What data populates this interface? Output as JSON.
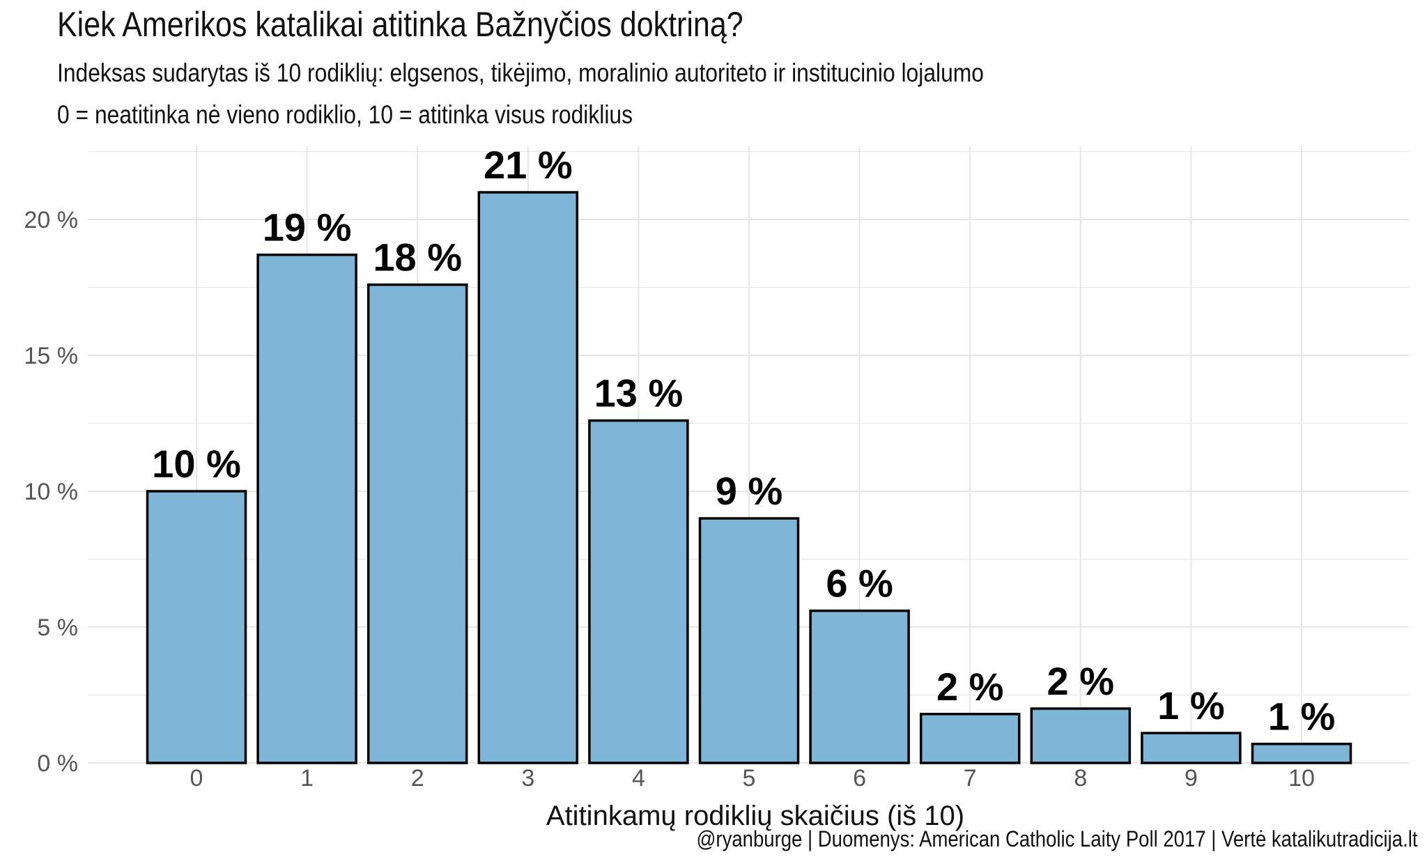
{
  "header": {
    "title": "Kiek Amerikos katalikai atitinka Bažnyčios doktriną?",
    "subtitle_line1": "Indeksas sudarytas iš 10 rodiklių: elgsenos, tikėjimo, moralinio autoriteto ir institucinio lojalumo",
    "subtitle_line2": "0 = neatitinka nė vieno rodiklio, 10 = atitinka visus rodiklius"
  },
  "caption": "@ryanburge | Duomenys: American Catholic Laity Poll 2017 | Vertė katalikutradicija.lt",
  "colors": {
    "bar_fill": "#7fb5d6",
    "bar_stroke": "#000000",
    "grid": "#e6e6e6"
  },
  "chart_data": {
    "type": "bar",
    "title": "Kiek Amerikos katalikai atitinka Bažnyčios doktriną?",
    "xlabel": "Atitinkamų rodiklių skaičius (iš 10)",
    "ylabel": "",
    "categories": [
      "0",
      "1",
      "2",
      "3",
      "4",
      "5",
      "6",
      "7",
      "8",
      "9",
      "10"
    ],
    "values": [
      10.0,
      18.7,
      17.6,
      21.0,
      12.6,
      9.0,
      5.6,
      1.8,
      2.0,
      1.1,
      0.7
    ],
    "value_labels": [
      "10 %",
      "19 %",
      "18 %",
      "21 %",
      "13 %",
      "9 %",
      "6 %",
      "2 %",
      "2 %",
      "1 %",
      "1 %"
    ],
    "yticks": [
      0,
      5,
      10,
      15,
      20
    ],
    "ytick_labels": [
      "0 %",
      "5 %",
      "10 %",
      "15 %",
      "20 %"
    ],
    "ylim": [
      0,
      22.5
    ],
    "grid": true,
    "legend": "none"
  }
}
